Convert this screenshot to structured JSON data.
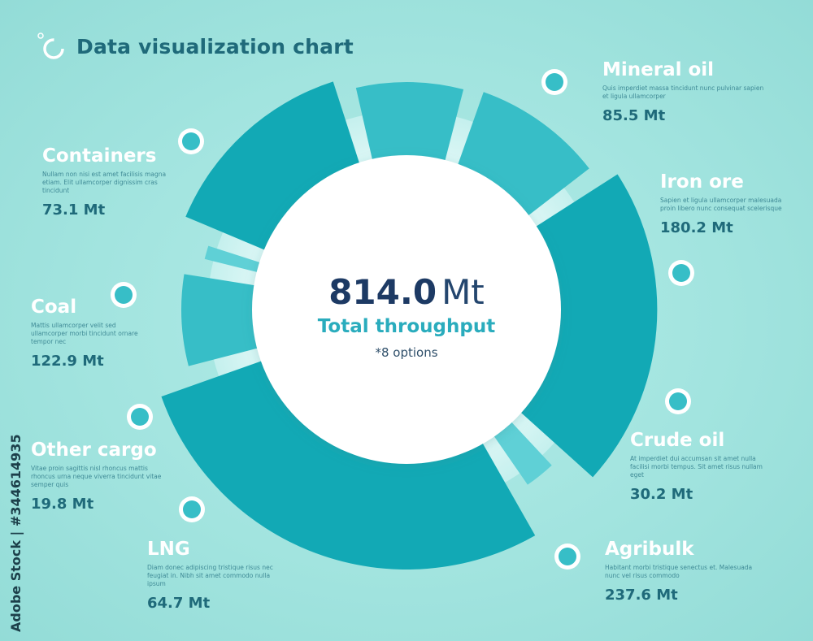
{
  "title": "Data visualization chart",
  "center": {
    "total_value": "814.0",
    "total_unit": "Mt",
    "total_label": "Total  throughput",
    "options_note": "*8 options"
  },
  "watermark": "Adobe Stock | #344614935",
  "colors": {
    "background": "#a6e6e1",
    "segment_dark": "#12a9b5",
    "segment_mid": "#37bec7",
    "segment_light": "#5fd0d6",
    "title": "#1f6a7a",
    "total": "#1d3a64",
    "accent": "#2aacbd"
  },
  "chart_data": {
    "type": "pie",
    "title": "Data visualization chart",
    "unit": "Mt",
    "total": 814.0,
    "slices": [
      {
        "name": "Mineral oil",
        "value": 85.5,
        "label": "85.5 Mt",
        "desc": "Quis imperdiet massa tincidunt nunc pulvinar sapien et ligula ullamcorper"
      },
      {
        "name": "Iron ore",
        "value": 180.2,
        "label": "180.2 Mt",
        "desc": "Sapien et ligula ullamcorper malesuada proin libero nunc consequat scelerisque"
      },
      {
        "name": "Crude oil",
        "value": 30.2,
        "label": "30.2 Mt",
        "desc": "At imperdiet dui accumsan sit amet nulla facilisi morbi tempus. Sit amet risus nullam eget"
      },
      {
        "name": "Agribulk",
        "value": 237.6,
        "label": "237.6 Mt",
        "desc": "Habitant morbi tristique senectus et. Malesuada nunc vel risus commodo"
      },
      {
        "name": "LNG",
        "value": 64.7,
        "label": "64.7 Mt",
        "desc": "Diam donec adipiscing tristique risus nec feugiat in. Nibh sit amet commodo nulla ipsum"
      },
      {
        "name": "Other cargo",
        "value": 19.8,
        "label": "19.8 Mt",
        "desc": "Vitae proin sagittis nisl rhoncus mattis rhoncus urna neque viverra tincidunt vitae semper quis"
      },
      {
        "name": "Coal",
        "value": 122.9,
        "label": "122.9 Mt",
        "desc": "Mattis ullamcorper velit sed ullamcorper morbi tincidunt ornare tempor nec"
      },
      {
        "name": "Containers",
        "value": 73.1,
        "label": "73.1 Mt",
        "desc": "Nullam non nisi est amet facilisis magna etiam. Elit ullamcorper dignissim cras tincidunt"
      }
    ]
  }
}
